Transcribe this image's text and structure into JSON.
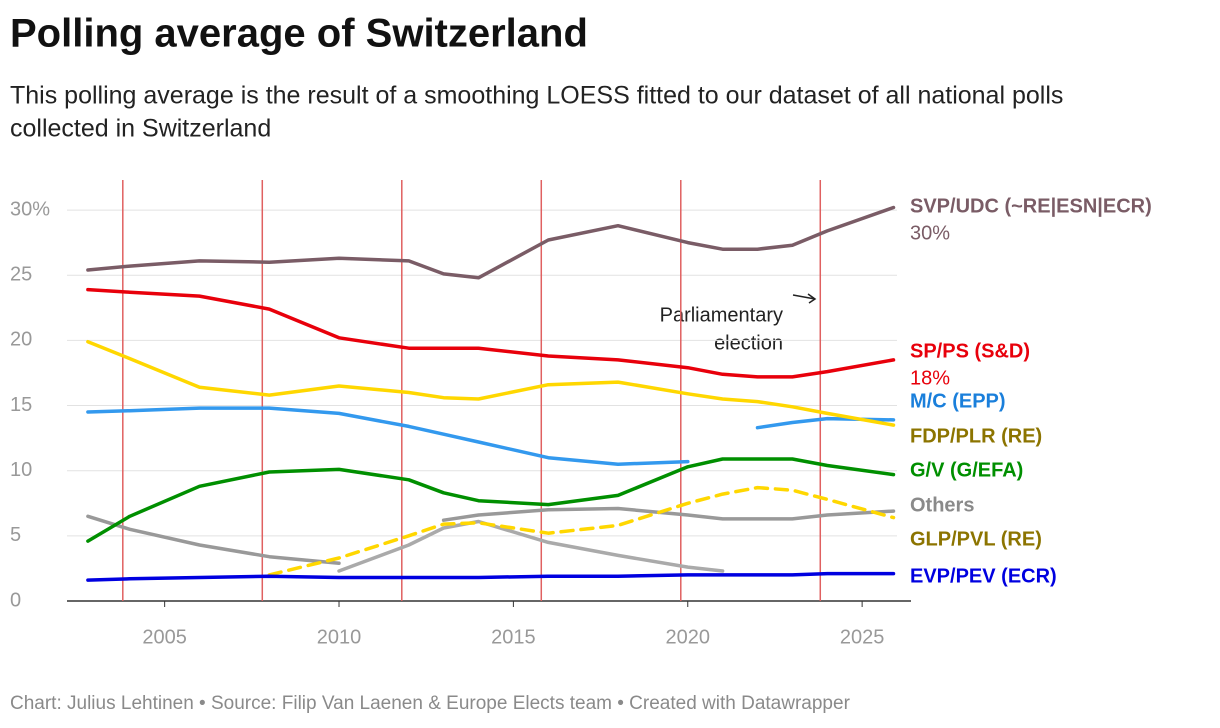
{
  "chart_data": {
    "type": "line",
    "title": "Polling average of Switzerland",
    "subtitle": [
      "This polling average is the result of a smoothing LOESS fitted to our dataset of all national polls",
      "collected in Switzerland"
    ],
    "footer": "Chart: Julius Lehtinen • Source: Filip Van Laenen & Europe Elects team • Created with Datawrapper",
    "annotation": [
      "Parliamentary",
      "election"
    ],
    "grid": true,
    "xlim": [
      2002.2,
      2026
    ],
    "ylim": [
      0,
      32
    ],
    "xticks": [
      2005,
      2010,
      2015,
      2020,
      2025
    ],
    "yticks": [
      0,
      5,
      10,
      15,
      20,
      25,
      {
        "value": 30,
        "label": "30%"
      }
    ],
    "election_lines": [
      2003.8,
      2007.8,
      2011.8,
      2015.8,
      2019.8,
      2023.8
    ],
    "election_color": "#e06060",
    "x": [
      2002.8,
      2004,
      2006,
      2008,
      2010,
      2012,
      2013,
      2014,
      2016,
      2018,
      2020,
      2021,
      2022,
      2023,
      2024,
      2025.9
    ],
    "series": [
      {
        "color": "#aaaaaa",
        "values": [
          null,
          null,
          null,
          null,
          2.3,
          4.3,
          5.6,
          6.1,
          4.5,
          3.5,
          2.6,
          2.3,
          null,
          null,
          null,
          null
        ]
      },
      {
        "name": "Others",
        "color": "#999999",
        "label_color": "#8a8a8a",
        "values": [
          6.5,
          5.5,
          4.3,
          3.4,
          2.9,
          null,
          6.2,
          6.6,
          7.0,
          7.1,
          6.6,
          6.3,
          6.3,
          6.3,
          6.6,
          6.9
        ]
      },
      {
        "name": "GLP/PVL (RE)",
        "color": "#ffd700",
        "label_color": "#8c7400",
        "dashed": true,
        "values": [
          null,
          null,
          null,
          2.0,
          3.3,
          5.0,
          5.9,
          6.0,
          5.2,
          5.8,
          7.5,
          8.2,
          8.7,
          8.5,
          7.8,
          6.4
        ]
      },
      {
        "name": "EVP/PEV (ECR)",
        "color": "#0000e0",
        "label_color": "#0000e0",
        "values": [
          1.6,
          1.7,
          1.8,
          1.9,
          1.8,
          1.8,
          1.8,
          1.8,
          1.9,
          1.9,
          2.0,
          2.0,
          2.0,
          2.0,
          2.1,
          2.1
        ]
      },
      {
        "name": "G/V (G/EFA)",
        "color": "#008f00",
        "label_color": "#008f00",
        "values": [
          4.6,
          6.5,
          8.8,
          9.9,
          10.1,
          9.3,
          8.3,
          7.7,
          7.4,
          8.1,
          10.3,
          10.9,
          10.9,
          10.9,
          10.4,
          9.7
        ]
      },
      {
        "name": "M/C (EPP)",
        "color": "#3399ee",
        "label_color": "#1a7fdb",
        "values": [
          14.5,
          14.6,
          14.8,
          14.8,
          14.4,
          13.4,
          12.8,
          12.2,
          11.0,
          10.5,
          10.7,
          null,
          13.3,
          13.7,
          14.0,
          13.9
        ]
      },
      {
        "name": "FDP/PLR (RE)",
        "color": "#ffd700",
        "label_color": "#8c7400",
        "values": [
          19.9,
          18.6,
          16.4,
          15.8,
          16.5,
          16.0,
          15.6,
          15.5,
          16.6,
          16.8,
          15.9,
          15.5,
          15.3,
          14.9,
          14.4,
          13.5
        ]
      },
      {
        "name": "SP/PS (S&D)",
        "color": "#e8000b",
        "label_color": "#e8000b",
        "end_value": {
          "value": 18,
          "label": "18%"
        },
        "values": [
          23.9,
          23.7,
          23.4,
          22.4,
          20.2,
          19.4,
          19.4,
          19.4,
          18.8,
          18.5,
          17.9,
          17.4,
          17.2,
          17.2,
          17.6,
          18.5
        ]
      },
      {
        "name": "SVP/UDC (~RE|ESN|ECR)",
        "color": "#7a5c66",
        "label_color": "#7a5c66",
        "end_value": {
          "value": 30,
          "label": "30%"
        },
        "values": [
          25.4,
          25.7,
          26.1,
          26.0,
          26.3,
          26.1,
          25.1,
          24.8,
          27.7,
          28.8,
          27.5,
          27.0,
          27.0,
          27.3,
          28.4,
          30.2
        ]
      }
    ]
  }
}
